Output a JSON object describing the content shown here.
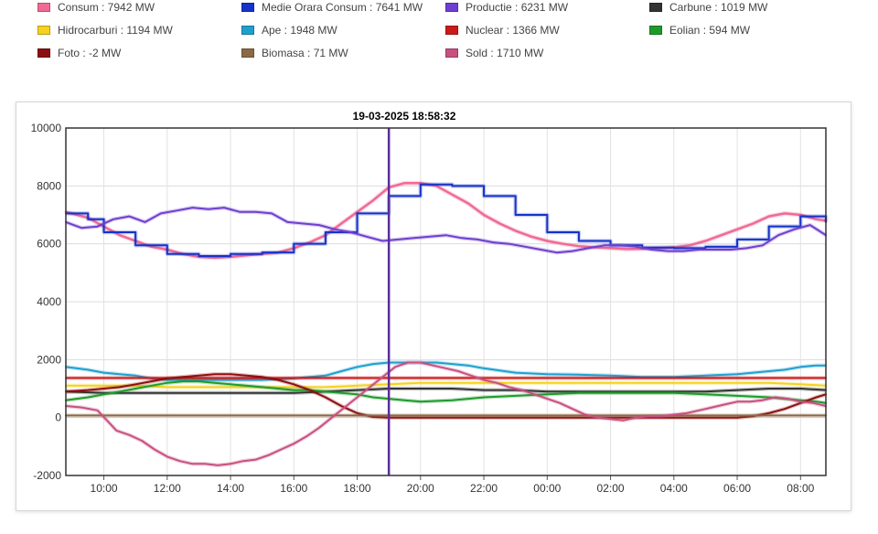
{
  "legend": [
    {
      "label": "Consum : 7942 MW",
      "color": "#f06a95"
    },
    {
      "label": "Medie Orara Consum : 7641 MW",
      "color": "#1632c8"
    },
    {
      "label": "Productie : 6231 MW",
      "color": "#6e3fd0"
    },
    {
      "label": "Carbune : 1019 MW",
      "color": "#333333"
    },
    {
      "label": "Hidrocarburi : 1194 MW",
      "color": "#f5d21f"
    },
    {
      "label": "Ape : 1948 MW",
      "color": "#1f9fd0"
    },
    {
      "label": "Nuclear : 1366 MW",
      "color": "#cc1a1a"
    },
    {
      "label": "Eolian : 594 MW",
      "color": "#1f9a2a"
    },
    {
      "label": "Foto : -2 MW",
      "color": "#8c0f0f"
    },
    {
      "label": "Biomasa : 71 MW",
      "color": "#8a6a45"
    },
    {
      "label": "Sold : 1710 MW",
      "color": "#c85080"
    }
  ],
  "chart_data": {
    "type": "line",
    "title": "19-03-2025 18:58:32",
    "x_unit": "hours since 08:48",
    "x_range": [
      8.8,
      32.8
    ],
    "x_tick_labels": [
      "10:00",
      "12:00",
      "14:00",
      "16:00",
      "18:00",
      "20:00",
      "22:00",
      "00:00",
      "02:00",
      "04:00",
      "06:00",
      "08:00"
    ],
    "y_ticks": [
      -2000,
      0,
      2000,
      4000,
      6000,
      8000,
      10000
    ],
    "ylim": [
      -2000,
      10000
    ],
    "cursor_x": 19.0,
    "grid": true,
    "series": [
      {
        "name": "Consum",
        "color": "#f06a95",
        "width": 2.5,
        "x": [
          8.8,
          9.5,
          10,
          10.5,
          11,
          11.5,
          12,
          12.5,
          13,
          13.5,
          14,
          14.5,
          15,
          15.5,
          16,
          16.5,
          17,
          17.5,
          18,
          18.5,
          19,
          19.5,
          20,
          20.5,
          21,
          21.5,
          22,
          22.5,
          23,
          23.5,
          24,
          24.5,
          25,
          25.5,
          26,
          26.5,
          27,
          27.5,
          28,
          28.5,
          29,
          29.5,
          30,
          30.5,
          31,
          31.5,
          32,
          32.5,
          32.8
        ],
        "y": [
          7100,
          6900,
          6600,
          6300,
          6100,
          5900,
          5800,
          5650,
          5550,
          5520,
          5550,
          5600,
          5650,
          5700,
          5850,
          6050,
          6300,
          6700,
          7100,
          7500,
          7950,
          8100,
          8100,
          8000,
          7700,
          7400,
          7000,
          6700,
          6450,
          6250,
          6100,
          6000,
          5920,
          5880,
          5850,
          5820,
          5830,
          5850,
          5880,
          5950,
          6100,
          6300,
          6500,
          6700,
          6950,
          7050,
          7000,
          6850,
          6800
        ]
      },
      {
        "name": "Medie Orara Consum",
        "color": "#1632c8",
        "width": 2,
        "step": true,
        "x": [
          8.8,
          9.5,
          10,
          11,
          12,
          13,
          14,
          15,
          16,
          17,
          18,
          19,
          20,
          21,
          22,
          23,
          24,
          25,
          26,
          27,
          28,
          29,
          30,
          31,
          32,
          32.8
        ],
        "y": [
          7050,
          6850,
          6400,
          5950,
          5650,
          5580,
          5650,
          5700,
          6000,
          6400,
          7050,
          7650,
          8050,
          8000,
          7650,
          7000,
          6400,
          6100,
          5950,
          5870,
          5850,
          5900,
          6150,
          6600,
          6950,
          6750
        ]
      },
      {
        "name": "Productie",
        "color": "#6e3fd0",
        "width": 2,
        "x": [
          8.8,
          9.3,
          9.8,
          10.3,
          10.8,
          11.3,
          11.8,
          12.3,
          12.8,
          13.3,
          13.8,
          14.3,
          14.8,
          15.3,
          15.8,
          16.3,
          16.8,
          17.3,
          17.8,
          18.3,
          18.8,
          19.3,
          19.8,
          20.3,
          20.8,
          21.3,
          21.8,
          22.3,
          22.8,
          23.3,
          23.8,
          24.3,
          24.8,
          25.3,
          25.8,
          26.3,
          26.8,
          27.3,
          27.8,
          28.3,
          28.8,
          29.3,
          29.8,
          30.3,
          30.8,
          31.3,
          31.8,
          32.3,
          32.8
        ],
        "y": [
          6750,
          6550,
          6600,
          6850,
          6950,
          6750,
          7050,
          7150,
          7250,
          7200,
          7250,
          7100,
          7100,
          7050,
          6750,
          6700,
          6650,
          6500,
          6400,
          6250,
          6100,
          6150,
          6200,
          6250,
          6300,
          6200,
          6150,
          6050,
          6000,
          5900,
          5800,
          5700,
          5750,
          5850,
          5950,
          5950,
          5900,
          5800,
          5750,
          5750,
          5800,
          5800,
          5800,
          5850,
          5950,
          6300,
          6500,
          6650,
          6300
        ]
      },
      {
        "name": "Ape",
        "color": "#1f9fd0",
        "width": 2,
        "x": [
          8.8,
          9.5,
          10,
          10.5,
          11,
          11.5,
          12,
          13,
          14,
          15,
          16,
          17,
          17.5,
          18,
          18.5,
          19,
          19.5,
          20,
          20.5,
          21,
          21.5,
          22,
          23,
          24,
          25,
          26,
          27,
          28,
          29,
          30,
          30.5,
          31,
          31.5,
          32,
          32.5,
          32.8
        ],
        "y": [
          1750,
          1650,
          1550,
          1500,
          1450,
          1350,
          1300,
          1300,
          1300,
          1300,
          1350,
          1450,
          1600,
          1750,
          1850,
          1900,
          1900,
          1900,
          1900,
          1850,
          1800,
          1700,
          1550,
          1500,
          1480,
          1450,
          1400,
          1400,
          1450,
          1500,
          1550,
          1600,
          1650,
          1750,
          1800,
          1800
        ]
      },
      {
        "name": "Nuclear",
        "color": "#cc1a1a",
        "width": 2,
        "x": [
          8.8,
          32.8
        ],
        "y": [
          1366,
          1366
        ]
      },
      {
        "name": "Hidrocarburi",
        "color": "#f5d21f",
        "width": 2,
        "x": [
          8.8,
          10,
          11,
          12,
          13,
          14,
          15,
          16,
          17,
          18,
          19,
          20,
          21,
          22,
          23,
          24,
          25,
          26,
          27,
          28,
          29,
          30,
          31,
          32,
          32.8
        ],
        "y": [
          1100,
          1100,
          1100,
          1050,
          1050,
          1050,
          1050,
          1050,
          1050,
          1100,
          1150,
          1200,
          1200,
          1200,
          1200,
          1200,
          1200,
          1200,
          1200,
          1200,
          1200,
          1200,
          1200,
          1150,
          1100
        ]
      },
      {
        "name": "Carbune",
        "color": "#333333",
        "width": 2,
        "x": [
          8.8,
          10,
          11,
          12,
          13,
          14,
          15,
          16,
          17,
          18,
          19,
          20,
          21,
          22,
          23,
          24,
          25,
          26,
          27,
          28,
          29,
          30,
          31,
          32,
          32.8
        ],
        "y": [
          900,
          850,
          850,
          850,
          850,
          850,
          850,
          850,
          900,
          950,
          1000,
          1000,
          1000,
          950,
          950,
          900,
          900,
          900,
          900,
          900,
          900,
          950,
          1000,
          1000,
          950
        ]
      },
      {
        "name": "Eolian",
        "color": "#1f9a2a",
        "width": 2,
        "x": [
          8.8,
          9.5,
          10,
          10.5,
          11,
          11.5,
          12,
          12.5,
          13,
          13.5,
          14,
          14.5,
          15,
          15.5,
          16,
          16.5,
          17,
          17.5,
          18,
          18.5,
          19,
          19.5,
          20,
          21,
          22,
          23,
          24,
          25,
          26,
          27,
          28,
          29,
          30,
          31,
          31.5,
          32,
          32.5,
          32.8
        ],
        "y": [
          600,
          700,
          800,
          900,
          1000,
          1100,
          1200,
          1250,
          1250,
          1200,
          1150,
          1100,
          1050,
          1000,
          950,
          950,
          900,
          850,
          800,
          700,
          650,
          600,
          550,
          600,
          700,
          750,
          800,
          850,
          850,
          850,
          850,
          800,
          750,
          700,
          650,
          600,
          550,
          500
        ]
      },
      {
        "name": "Foto",
        "color": "#8c0f0f",
        "width": 2,
        "x": [
          8.8,
          9.5,
          10,
          10.5,
          11,
          11.5,
          12,
          12.5,
          13,
          13.5,
          14,
          14.5,
          15,
          15.5,
          16,
          16.5,
          17,
          17.5,
          18,
          18.5,
          19,
          20,
          21,
          22,
          23,
          24,
          25,
          26,
          27,
          28,
          29,
          30,
          30.5,
          31,
          31.5,
          32,
          32.5,
          32.8
        ],
        "y": [
          900,
          950,
          1000,
          1050,
          1150,
          1250,
          1350,
          1400,
          1450,
          1500,
          1500,
          1450,
          1400,
          1300,
          1150,
          950,
          700,
          400,
          150,
          20,
          0,
          0,
          0,
          0,
          0,
          0,
          0,
          0,
          0,
          0,
          0,
          0,
          50,
          150,
          300,
          500,
          700,
          800
        ]
      },
      {
        "name": "Biomasa",
        "color": "#8a6a45",
        "width": 2,
        "x": [
          8.8,
          32.8
        ],
        "y": [
          71,
          71
        ]
      },
      {
        "name": "Sold",
        "color": "#c85080",
        "width": 2,
        "x": [
          8.8,
          9.3,
          9.8,
          10.1,
          10.4,
          10.8,
          11.2,
          11.6,
          12,
          12.4,
          12.8,
          13.2,
          13.6,
          14,
          14.4,
          14.8,
          15.2,
          15.6,
          16,
          16.4,
          16.8,
          17.2,
          17.6,
          18,
          18.4,
          18.8,
          19.2,
          19.6,
          20,
          20.4,
          20.8,
          21.2,
          21.6,
          22,
          22.4,
          22.8,
          23.2,
          23.6,
          24,
          24.4,
          24.8,
          25.2,
          25.6,
          26,
          26.4,
          26.8,
          27.2,
          27.6,
          28,
          28.4,
          28.8,
          29.2,
          29.6,
          30,
          30.4,
          30.8,
          31.2,
          31.6,
          32,
          32.4,
          32.8
        ],
        "y": [
          400,
          350,
          250,
          -100,
          -450,
          -600,
          -800,
          -1100,
          -1350,
          -1500,
          -1600,
          -1600,
          -1650,
          -1600,
          -1500,
          -1450,
          -1300,
          -1100,
          -900,
          -650,
          -350,
          0,
          350,
          700,
          1050,
          1400,
          1750,
          1900,
          1900,
          1800,
          1700,
          1600,
          1450,
          1300,
          1200,
          1050,
          950,
          800,
          650,
          500,
          300,
          100,
          0,
          -50,
          -100,
          0,
          50,
          50,
          100,
          150,
          250,
          350,
          450,
          550,
          550,
          600,
          700,
          650,
          550,
          500,
          400
        ]
      }
    ]
  }
}
